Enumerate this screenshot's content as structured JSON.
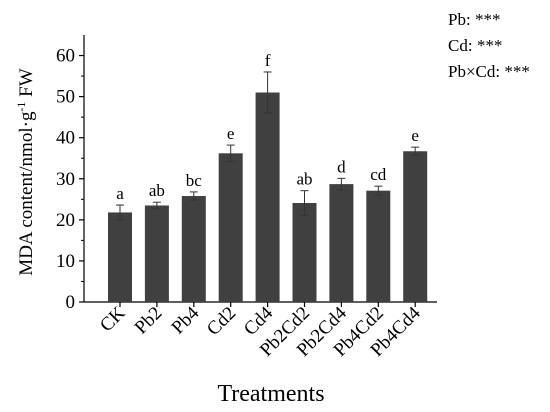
{
  "chart_data": {
    "type": "bar",
    "xlabel": "Treatments",
    "ylabel_main": "MDA content/nmol·g",
    "ylabel_sup": "-1",
    "ylabel_tail": " FW",
    "ylim": [
      0,
      65
    ],
    "yticks": [
      0,
      10,
      20,
      30,
      40,
      50,
      60
    ],
    "categories": [
      "CK",
      "Pb2",
      "Pb4",
      "Cd2",
      "Cd4",
      "Pb2Cd2",
      "Pb2Cd4",
      "Pb4Cd2",
      "Pb4Cd4"
    ],
    "values": [
      21.8,
      23.5,
      25.8,
      36.2,
      51.0,
      24.1,
      28.7,
      27.1,
      36.7
    ],
    "errors": [
      1.8,
      0.8,
      1.0,
      2.0,
      5.0,
      3.0,
      1.4,
      1.1,
      1.0
    ],
    "significance": [
      "a",
      "ab",
      "bc",
      "e",
      "f",
      "ab",
      "d",
      "cd",
      "e"
    ],
    "bar_color": "#404040",
    "statistics": [
      {
        "label": "Pb",
        "value": "***"
      },
      {
        "label": "Cd",
        "value": "***"
      },
      {
        "label": "Pb×Cd",
        "value": "***"
      }
    ]
  }
}
